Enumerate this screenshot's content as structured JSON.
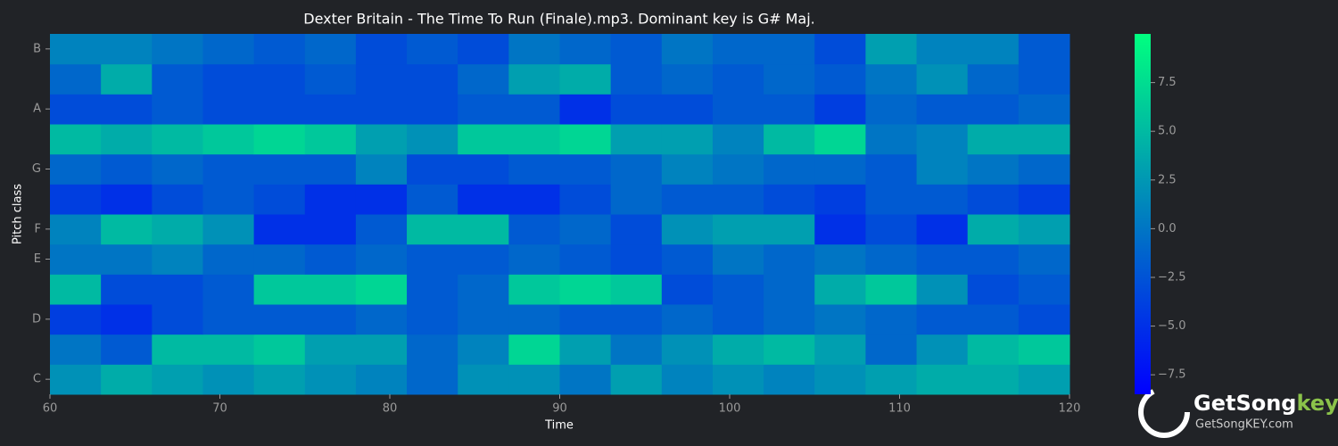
{
  "chart_data": {
    "type": "heatmap",
    "title": "Dexter Britain - The Time To Run (Finale).mp3. Dominant key is G# Maj.",
    "xlabel": "Time",
    "ylabel": "Pitch class",
    "xlim": [
      60,
      120
    ],
    "xticks": [
      60,
      70,
      80,
      90,
      100,
      110,
      120
    ],
    "xbins": [
      60,
      63,
      66,
      69,
      72,
      75,
      78,
      81,
      84,
      87,
      90,
      93,
      96,
      99,
      102,
      105,
      108,
      111,
      114,
      117,
      120
    ],
    "categories": [
      "C",
      null,
      "D",
      null,
      "E",
      "F",
      null,
      "G",
      null,
      "A",
      null,
      "B"
    ],
    "values": [
      [
        2,
        4,
        3,
        2,
        3,
        2,
        1,
        -1,
        2,
        2,
        0,
        3,
        1,
        2,
        1,
        2,
        3,
        4,
        4,
        3
      ],
      [
        0,
        -2,
        5,
        5,
        6,
        3,
        3,
        -1,
        1,
        7,
        3,
        0,
        2,
        4,
        5,
        3,
        -1,
        2,
        5,
        6
      ],
      [
        -4,
        -5,
        -3,
        -2,
        -2,
        -2,
        -1,
        -2,
        -1,
        -1,
        -2,
        -2,
        -1,
        -2,
        -1,
        0,
        -1,
        -2,
        -2,
        -3
      ],
      [
        5,
        -3,
        -3,
        -2,
        6,
        6,
        7,
        -2,
        -1,
        6,
        7,
        6,
        -3,
        -2,
        -1,
        4,
        6,
        2,
        -3,
        -2
      ],
      [
        0,
        0,
        1,
        -1,
        -1,
        -2,
        -1,
        -2,
        -2,
        -1,
        -2,
        -3,
        -2,
        0,
        -1,
        0,
        -1,
        -2,
        -2,
        -1
      ],
      [
        1,
        5,
        4,
        2,
        -5,
        -5,
        -2,
        5,
        5,
        -2,
        -1,
        -3,
        2,
        3,
        3,
        -5,
        -3,
        -5,
        4,
        3
      ],
      [
        -4,
        -5,
        -3,
        -2,
        -3,
        -5,
        -5,
        -2,
        -5,
        -5,
        -3,
        -1,
        -2,
        -2,
        -3,
        -4,
        -2,
        -2,
        -3,
        -4
      ],
      [
        -1,
        -2,
        -1,
        -2,
        -2,
        -2,
        1,
        -3,
        -3,
        -2,
        -2,
        -1,
        1,
        0,
        -1,
        -1,
        -2,
        1,
        0,
        -1
      ],
      [
        5,
        4,
        5,
        6,
        7,
        6,
        3,
        2,
        6,
        6,
        7,
        3,
        3,
        1,
        5,
        7,
        0,
        1,
        4,
        4
      ],
      [
        -3,
        -3,
        -2,
        -3,
        -3,
        -3,
        -3,
        -3,
        -2,
        -2,
        -5,
        -3,
        -3,
        -2,
        -2,
        -4,
        -1,
        -2,
        -2,
        -1
      ],
      [
        -1,
        4,
        -2,
        -3,
        -3,
        -2,
        -3,
        -3,
        -1,
        3,
        4,
        -2,
        -1,
        -2,
        -1,
        -2,
        0,
        2,
        -1,
        -2
      ],
      [
        1,
        1,
        0,
        -1,
        -2,
        -1,
        -3,
        -2,
        -3,
        0,
        -1,
        -2,
        0,
        -1,
        -1,
        -3,
        3,
        1,
        1,
        -2
      ]
    ],
    "colormap": "winter",
    "clim": [
      -8.5,
      10
    ],
    "cticks": [
      {
        "value": -7.5,
        "label": "−7.5"
      },
      {
        "value": -5,
        "label": "−5.0"
      },
      {
        "value": -2.5,
        "label": "−2.5"
      },
      {
        "value": 0,
        "label": "0.0"
      },
      2.5,
      {
        "value": 5,
        "label": "5.0"
      },
      7.5
    ]
  },
  "logo": {
    "name": "GetSong",
    "accent": "key",
    "url": "GetSongKEY.com"
  }
}
